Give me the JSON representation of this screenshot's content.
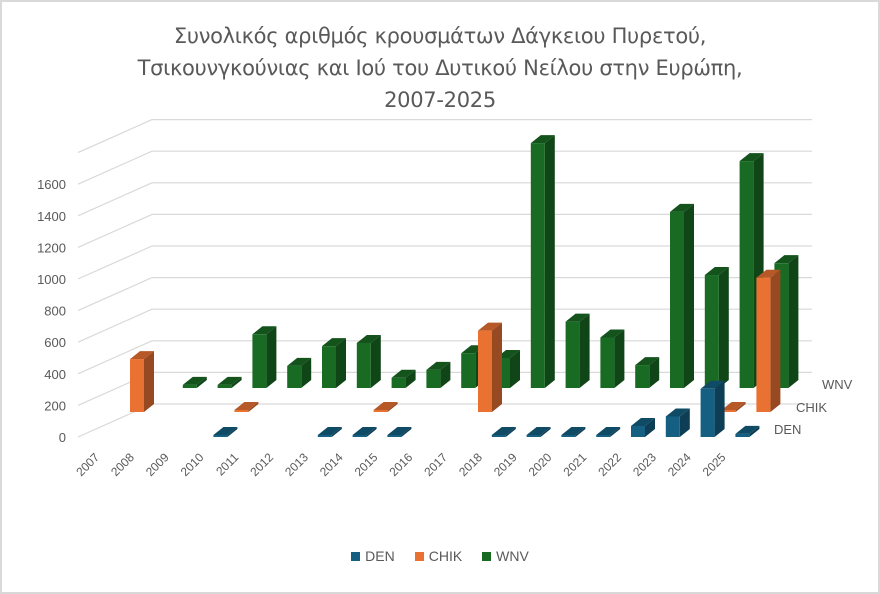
{
  "chart_data": {
    "type": "bar",
    "variant": "3d-column-depth",
    "title": "Συνολικός αριθμός κρουσμάτων Δάγκειου Πυρετού, Τσικουνγκούνιας και Ιού του Δυτικού Νείλου στην Ευρώπη, 2007-2025",
    "title_lines": [
      "Συνολικός αριθμός κρουσμάτων Δάγκειου Πυρετού,",
      "Τσικουνγκούνιας και Ιού του Δυτικού Νείλου στην Ευρώπη,",
      "2007-2025"
    ],
    "xlabel": "",
    "ylabel": "",
    "categories": [
      "2007",
      "2008",
      "2009",
      "2010",
      "2011",
      "2012",
      "2013",
      "2014",
      "2015",
      "2016",
      "2017",
      "2018",
      "2019",
      "2020",
      "2021",
      "2022",
      "2023",
      "2024",
      "2025"
    ],
    "y_ticks": [
      0,
      200,
      400,
      600,
      800,
      1000,
      1200,
      1400,
      1600
    ],
    "ylim": [
      0,
      1800
    ],
    "grid": true,
    "legend_position": "bottom",
    "series": [
      {
        "name": "DEN",
        "color": "#156082",
        "values": [
          0,
          0,
          0,
          5,
          0,
          0,
          5,
          5,
          5,
          0,
          0,
          8,
          8,
          10,
          5,
          70,
          130,
          305,
          20
        ]
      },
      {
        "name": "CHIK",
        "color": "#E97132",
        "values": [
          335,
          0,
          0,
          5,
          0,
          0,
          0,
          10,
          0,
          0,
          515,
          0,
          0,
          0,
          0,
          0,
          0,
          5,
          850
        ]
      },
      {
        "name": "WNV",
        "color": "#196B24",
        "values": [
          0,
          20,
          20,
          340,
          140,
          265,
          285,
          65,
          115,
          220,
          190,
          1550,
          420,
          320,
          145,
          1115,
          715,
          1436,
          790
        ]
      }
    ]
  },
  "legend": {
    "items": [
      {
        "label": "DEN",
        "color": "#156082"
      },
      {
        "label": "CHIK",
        "color": "#E97132"
      },
      {
        "label": "WNV",
        "color": "#196B24"
      }
    ]
  },
  "depth_axis_labels": [
    "DEN",
    "CHIK",
    "WNV"
  ]
}
